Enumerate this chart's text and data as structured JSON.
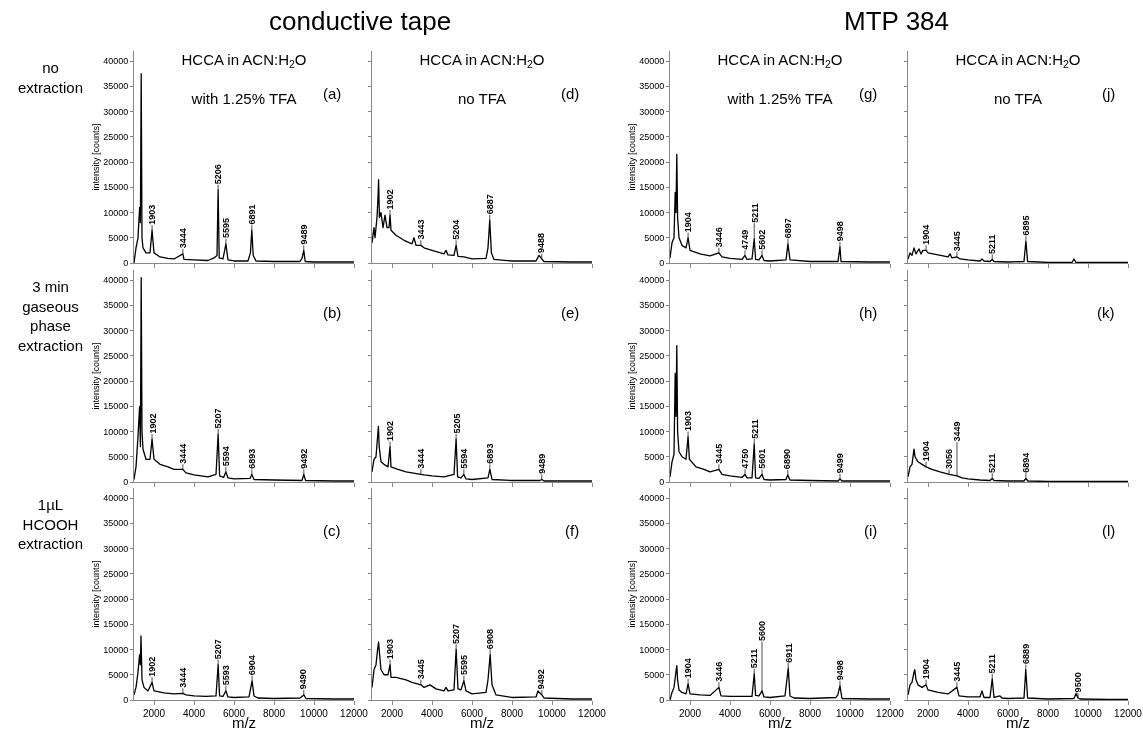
{
  "chart_data": [
    {
      "type": "line",
      "title": "HCCA in ACN:H$_{2}$O",
      "subtitle": "with 1.25% TFA",
      "ylabel": "intensity [counts]",
      "xlim": [
        1000,
        12000
      ],
      "ylim": [
        0,
        42000
      ],
      "xticks": [
        2000,
        4000,
        6000,
        8000,
        10000,
        12000
      ],
      "yticks": [
        0,
        5000,
        10000,
        15000,
        20000,
        25000,
        30000,
        35000,
        40000
      ],
      "tick_labels": "y",
      "x": [
        1000,
        1100,
        1200,
        1280,
        1320,
        1360,
        1400,
        1450,
        1600,
        1800,
        1903,
        2000,
        2300,
        2700,
        3000,
        3444,
        3500,
        4000,
        4700,
        5000,
        5150,
        5206,
        5260,
        5450,
        5595,
        5700,
        6000,
        6700,
        6820,
        6891,
        6960,
        7100,
        8000,
        9300,
        9400,
        9489,
        9560,
        10000,
        11000,
        12000
      ],
      "series": [
        {
          "color": "#000000",
          "values": [
            0,
            3000,
            5000,
            11000,
            8000,
            37500,
            5000,
            3000,
            2000,
            2000,
            6500,
            2000,
            1200,
            900,
            800,
            1800,
            700,
            600,
            500,
            1000,
            1500,
            14500,
            1000,
            800,
            3800,
            600,
            400,
            400,
            2000,
            6500,
            1500,
            400,
            300,
            300,
            900,
            2500,
            300,
            200,
            200,
            200
          ]
        }
      ],
      "annotations": [
        "conductive tape",
        "no\nextraction",
        "(a)",
        {
          "text": "1903",
          "x": 1903,
          "y": 6500
        },
        {
          "text": "3444",
          "x": 3444,
          "y": 1800
        },
        {
          "text": "5206",
          "x": 5206,
          "y": 14500
        },
        {
          "text": "5595",
          "x": 5595,
          "y": 3800
        },
        {
          "text": "6891",
          "x": 6891,
          "y": 6500
        },
        {
          "text": "9489",
          "x": 9489,
          "y": 2500
        }
      ]
    },
    {
      "type": "line",
      "title": "HCCA in ACN:H$_{2}$O",
      "subtitle": "no TFA",
      "xlim": [
        1000,
        12000
      ],
      "ylim": [
        0,
        42000
      ],
      "xticks": [
        2000,
        4000,
        6000,
        8000,
        10000,
        12000
      ],
      "yticks": [
        0,
        5000,
        10000,
        15000,
        20000,
        25000,
        30000,
        35000,
        40000
      ],
      "tick_labels": false,
      "x": [
        1000,
        1100,
        1150,
        1250,
        1300,
        1330,
        1370,
        1450,
        1550,
        1650,
        1750,
        1850,
        1902,
        1950,
        2200,
        2600,
        3000,
        3100,
        3200,
        3443,
        3600,
        4000,
        4600,
        4700,
        4800,
        5100,
        5204,
        5300,
        5600,
        6000,
        6700,
        6800,
        6887,
        6970,
        7100,
        8000,
        9200,
        9350,
        9488,
        9600,
        11000,
        12000
      ],
      "series": [
        {
          "color": "#000000",
          "values": [
            4000,
            7000,
            5000,
            9000,
            13000,
            16500,
            9000,
            10000,
            7000,
            9500,
            7000,
            7000,
            9500,
            6500,
            5500,
            4500,
            3800,
            5000,
            3500,
            3500,
            3000,
            2500,
            1800,
            2500,
            1600,
            1500,
            3500,
            1300,
            1200,
            800,
            900,
            3000,
            8500,
            2000,
            700,
            400,
            400,
            1500,
            800,
            300,
            200,
            200
          ]
        }
      ],
      "annotations": [
        "(d)",
        {
          "text": "1902",
          "x": 1902,
          "y": 9500
        },
        {
          "text": "3443",
          "x": 3443,
          "y": 3500
        },
        {
          "text": "5204",
          "x": 5204,
          "y": 3500
        },
        {
          "text": "6887",
          "x": 6887,
          "y": 8500
        },
        {
          "text": "9488",
          "x": 9488,
          "y": 800
        }
      ]
    },
    {
      "type": "line",
      "title": "HCCA in ACN:H$_{2}$O",
      "subtitle": "with 1.25% TFA",
      "ylabel": "intensity [counts]",
      "xlim": [
        1000,
        12000
      ],
      "ylim": [
        0,
        42000
      ],
      "xticks": [
        2000,
        4000,
        6000,
        8000,
        10000,
        12000
      ],
      "yticks": [
        0,
        5000,
        10000,
        15000,
        20000,
        25000,
        30000,
        35000,
        40000
      ],
      "tick_labels": "y",
      "x": [
        1000,
        1100,
        1200,
        1260,
        1300,
        1340,
        1380,
        1450,
        1600,
        1800,
        1904,
        2000,
        2500,
        3000,
        3446,
        3600,
        4000,
        4600,
        4749,
        4850,
        5100,
        5211,
        5280,
        5450,
        5602,
        5700,
        6000,
        6800,
        6897,
        7000,
        8000,
        9400,
        9498,
        9550,
        11000,
        12000
      ],
      "series": [
        {
          "color": "#000000",
          "values": [
            1000,
            4000,
            5000,
            14000,
            10000,
            21500,
            9000,
            5000,
            3500,
            3000,
            5000,
            2500,
            1800,
            1400,
            2000,
            1200,
            900,
            700,
            1500,
            700,
            800,
            4800,
            700,
            600,
            1500,
            500,
            400,
            600,
            3800,
            600,
            300,
            300,
            3200,
            300,
            200,
            200
          ]
        }
      ],
      "annotations": [
        "MTP 384",
        "(g)",
        {
          "text": "1904",
          "x": 1904,
          "y": 5000
        },
        {
          "text": "3446",
          "x": 3446,
          "y": 2000
        },
        {
          "text": "4749",
          "x": 4749,
          "y": 1500
        },
        {
          "text": "5211",
          "x": 5211,
          "y": 4800
        },
        {
          "text": "5602",
          "x": 5602,
          "y": 1500
        },
        {
          "text": "6897",
          "x": 6897,
          "y": 3800
        },
        {
          "text": "9498",
          "x": 9498,
          "y": 3200
        }
      ]
    },
    {
      "type": "line",
      "title": "HCCA in ACN:H$_{2}$O",
      "subtitle": "no TFA",
      "xlim": [
        1000,
        12000
      ],
      "ylim": [
        0,
        42000
      ],
      "xticks": [
        2000,
        4000,
        6000,
        8000,
        10000,
        12000
      ],
      "yticks": [
        0,
        5000,
        10000,
        15000,
        20000,
        25000,
        30000,
        35000,
        40000
      ],
      "tick_labels": false,
      "x": [
        1000,
        1100,
        1200,
        1300,
        1400,
        1550,
        1650,
        1750,
        1904,
        2000,
        2500,
        3000,
        3100,
        3200,
        3445,
        3600,
        4000,
        4600,
        4700,
        4800,
        5100,
        5211,
        5300,
        6000,
        6800,
        6895,
        6980,
        8000,
        9200,
        9300,
        9400,
        11000,
        12000
      ],
      "series": [
        {
          "color": "#000000",
          "values": [
            800,
            2000,
            1500,
            3000,
            1800,
            2800,
            1800,
            2500,
            2500,
            2000,
            1600,
            1200,
            1800,
            1000,
            1200,
            800,
            600,
            400,
            800,
            400,
            300,
            700,
            300,
            200,
            300,
            4300,
            300,
            100,
            100,
            800,
            100,
            100,
            100
          ]
        }
      ],
      "annotations": [
        "(j)",
        {
          "text": "1904",
          "x": 1904,
          "y": 2500
        },
        {
          "text": "3445",
          "x": 3445,
          "y": 1200
        },
        {
          "text": "5211",
          "x": 5211,
          "y": 700
        },
        {
          "text": "6895",
          "x": 6895,
          "y": 4300
        }
      ]
    },
    {
      "type": "line",
      "xlim": [
        1000,
        12000
      ],
      "ylim": [
        0,
        42000
      ],
      "ylabel": "intensity [counts]",
      "xticks": [
        2000,
        4000,
        6000,
        8000,
        10000,
        12000
      ],
      "yticks": [
        0,
        5000,
        10000,
        15000,
        20000,
        25000,
        30000,
        35000,
        40000
      ],
      "tick_labels": "y",
      "x": [
        1000,
        1100,
        1200,
        1280,
        1320,
        1360,
        1400,
        1450,
        1600,
        1800,
        1902,
        2000,
        2300,
        2700,
        3000,
        3444,
        3600,
        4000,
        4700,
        5100,
        5207,
        5280,
        5480,
        5594,
        5700,
        6000,
        6800,
        6893,
        7000,
        8000,
        9400,
        9492,
        9580,
        11000,
        12000
      ],
      "series": [
        {
          "color": "#000000",
          "values": [
            500,
            3000,
            9000,
            15000,
            7000,
            40500,
            10000,
            6500,
            4500,
            4500,
            8500,
            4500,
            3500,
            3000,
            2500,
            2500,
            1800,
            1400,
            1000,
            1500,
            9500,
            1200,
            900,
            2000,
            800,
            600,
            700,
            1500,
            500,
            400,
            300,
            1500,
            300,
            200,
            200
          ]
        }
      ],
      "annotations": [
        "3 min\ngaseous\nphase\nextraction",
        "(b)",
        {
          "text": "1902",
          "x": 1902,
          "y": 8500
        },
        {
          "text": "3444",
          "x": 3444,
          "y": 2500
        },
        {
          "text": "5207",
          "x": 5207,
          "y": 9500
        },
        {
          "text": "5594",
          "x": 5594,
          "y": 2000
        },
        {
          "text": "6893",
          "x": 6893,
          "y": 1500
        },
        {
          "text": "9492",
          "x": 9492,
          "y": 1500
        }
      ]
    },
    {
      "type": "line",
      "xlim": [
        1000,
        12000
      ],
      "ylim": [
        0,
        42000
      ],
      "xticks": [
        2000,
        4000,
        6000,
        8000,
        10000,
        12000
      ],
      "yticks": [
        0,
        5000,
        10000,
        15000,
        20000,
        25000,
        30000,
        35000,
        40000
      ],
      "tick_labels": false,
      "x": [
        1000,
        1100,
        1200,
        1280,
        1320,
        1360,
        1450,
        1600,
        1800,
        1902,
        1950,
        2300,
        2700,
        3000,
        3444,
        3600,
        4000,
        4600,
        5100,
        5205,
        5280,
        5450,
        5594,
        5700,
        6000,
        6800,
        6893,
        7000,
        8000,
        9400,
        9489,
        9600,
        11000,
        12000
      ],
      "series": [
        {
          "color": "#000000",
          "values": [
            2000,
            4500,
            5000,
            9000,
            11000,
            7000,
            4000,
            3500,
            3000,
            7000,
            3000,
            2500,
            2000,
            1800,
            1500,
            1400,
            1200,
            1000,
            1500,
            8500,
            1000,
            800,
            1500,
            600,
            500,
            800,
            2500,
            500,
            300,
            300,
            500,
            200,
            200,
            200
          ]
        }
      ],
      "annotations": [
        "(e)",
        {
          "text": "1902",
          "x": 1902,
          "y": 7000
        },
        {
          "text": "3444",
          "x": 3444,
          "y": 1500
        },
        {
          "text": "5205",
          "x": 5205,
          "y": 8500
        },
        {
          "text": "5594",
          "x": 5594,
          "y": 1500
        },
        {
          "text": "6893",
          "x": 6893,
          "y": 2500
        },
        {
          "text": "9489",
          "x": 9489,
          "y": 500
        }
      ]
    },
    {
      "type": "line",
      "xlim": [
        1000,
        12000
      ],
      "ylim": [
        0,
        42000
      ],
      "ylabel": "intensity [counts]",
      "xticks": [
        2000,
        4000,
        6000,
        8000,
        10000,
        12000
      ],
      "yticks": [
        0,
        5000,
        10000,
        15000,
        20000,
        25000,
        30000,
        35000,
        40000
      ],
      "tick_labels": "y",
      "x": [
        1000,
        1100,
        1200,
        1260,
        1300,
        1340,
        1380,
        1450,
        1600,
        1800,
        1903,
        1970,
        2300,
        2700,
        3000,
        3445,
        3600,
        4000,
        4600,
        4750,
        4850,
        5100,
        5211,
        5280,
        5450,
        5601,
        5700,
        6000,
        6800,
        6890,
        7000,
        8000,
        9400,
        9499,
        9600,
        11000,
        12000
      ],
      "series": [
        {
          "color": "#000000",
          "values": [
            1000,
            4000,
            5500,
            21500,
            13000,
            27000,
            10000,
            6000,
            5000,
            4500,
            9000,
            4500,
            3000,
            2500,
            2000,
            2500,
            1500,
            1200,
            900,
            1500,
            800,
            800,
            7500,
            800,
            700,
            1500,
            500,
            400,
            500,
            1400,
            400,
            300,
            200,
            600,
            200,
            200,
            200
          ]
        }
      ],
      "annotations": [
        "(h)",
        {
          "text": "1903",
          "x": 1903,
          "y": 9000
        },
        {
          "text": "3445",
          "x": 3445,
          "y": 2500
        },
        {
          "text": "4750",
          "x": 4750,
          "y": 1500
        },
        {
          "text": "5211",
          "x": 5211,
          "y": 7500
        },
        {
          "text": "5601",
          "x": 5601,
          "y": 1500
        },
        {
          "text": "6890",
          "x": 6890,
          "y": 1400
        },
        {
          "text": "9499",
          "x": 9499,
          "y": 600
        }
      ]
    },
    {
      "type": "line",
      "xlim": [
        1000,
        12000
      ],
      "ylim": [
        0,
        42000
      ],
      "xticks": [
        2000,
        4000,
        6000,
        8000,
        10000,
        12000
      ],
      "yticks": [
        0,
        5000,
        10000,
        15000,
        20000,
        25000,
        30000,
        35000,
        40000
      ],
      "tick_labels": false,
      "x": [
        1000,
        1100,
        1200,
        1300,
        1350,
        1500,
        1700,
        1904,
        2200,
        2600,
        3056,
        3449,
        3700,
        4000,
        4600,
        5100,
        5211,
        5300,
        6000,
        6800,
        6894,
        7000,
        8000,
        12000
      ],
      "series": [
        {
          "color": "#000000",
          "values": [
            1000,
            3000,
            3500,
            6500,
            5000,
            4000,
            3500,
            3000,
            2500,
            2000,
            1500,
            1200,
            800,
            600,
            400,
            300,
            700,
            300,
            200,
            200,
            700,
            200,
            100,
            100
          ]
        }
      ],
      "annotations": [
        "(k)",
        {
          "text": "1904",
          "x": 1904,
          "y": 3000
        },
        {
          "text": "3056",
          "x": 3056,
          "y": 1500
        },
        {
          "text": "3449",
          "x": 3449,
          "y": 1200
        },
        {
          "text": "5211",
          "x": 5211,
          "y": 700
        },
        {
          "text": "6894",
          "x": 6894,
          "y": 700
        }
      ]
    },
    {
      "type": "line",
      "xlabel": "m/z",
      "ylabel": "intensity [counts]",
      "xlim": [
        1000,
        12000
      ],
      "ylim": [
        0,
        42000
      ],
      "xticks": [
        2000,
        4000,
        6000,
        8000,
        10000,
        12000
      ],
      "yticks": [
        0,
        5000,
        10000,
        15000,
        20000,
        25000,
        30000,
        35000,
        40000
      ],
      "x": [
        1000,
        1100,
        1200,
        1280,
        1320,
        1350,
        1400,
        1500,
        1700,
        1902,
        2000,
        2500,
        3000,
        3444,
        3600,
        4000,
        4600,
        5100,
        5207,
        5280,
        5450,
        5593,
        5700,
        6000,
        6750,
        6904,
        7000,
        7200,
        8000,
        9300,
        9490,
        9600,
        11000,
        12000
      ],
      "series": [
        {
          "color": "#000000",
          "values": [
            1000,
            2500,
            5500,
            9000,
            7000,
            12700,
            4000,
            2500,
            1800,
            3500,
            1800,
            1400,
            1200,
            1300,
            1000,
            800,
            700,
            800,
            7000,
            800,
            700,
            1800,
            600,
            500,
            600,
            3800,
            800,
            400,
            300,
            400,
            1000,
            300,
            200,
            200
          ]
        }
      ],
      "annotations": [
        "1µL\nHCOOH\nextraction",
        "(c)",
        {
          "text": "1902",
          "x": 1902,
          "y": 3500
        },
        {
          "text": "3444",
          "x": 3444,
          "y": 1300
        },
        {
          "text": "5207",
          "x": 5207,
          "y": 7000
        },
        {
          "text": "5593",
          "x": 5593,
          "y": 1800
        },
        {
          "text": "6904",
          "x": 6904,
          "y": 3800
        },
        {
          "text": "9490",
          "x": 9490,
          "y": 1000
        }
      ]
    },
    {
      "type": "line",
      "xlabel": "m/z",
      "xlim": [
        1000,
        12000
      ],
      "ylim": [
        0,
        42000
      ],
      "xticks": [
        2000,
        4000,
        6000,
        8000,
        10000,
        12000
      ],
      "yticks": [
        0,
        5000,
        10000,
        15000,
        20000,
        25000,
        30000,
        35000,
        40000
      ],
      "tick_labels": "x",
      "x": [
        1000,
        1100,
        1200,
        1280,
        1330,
        1380,
        1450,
        1600,
        1800,
        1903,
        1950,
        2200,
        2700,
        3000,
        3445,
        3600,
        3900,
        4200,
        4600,
        4700,
        4800,
        5100,
        5207,
        5300,
        5450,
        5595,
        5700,
        6000,
        6700,
        6800,
        6908,
        7000,
        7200,
        8000,
        9200,
        9300,
        9492,
        9600,
        11000,
        12000
      ],
      "series": [
        {
          "color": "#000000",
          "values": [
            2500,
            6000,
            7000,
            10000,
            11500,
            9000,
            6000,
            5000,
            5000,
            7000,
            4500,
            4500,
            4000,
            3500,
            3000,
            2500,
            3000,
            2200,
            1800,
            2500,
            1800,
            2000,
            10000,
            2200,
            2000,
            3800,
            1800,
            1200,
            1500,
            4000,
            9000,
            3000,
            1000,
            500,
            600,
            1800,
            1000,
            400,
            200,
            200
          ]
        }
      ],
      "annotations": [
        "(f)",
        {
          "text": "1903",
          "x": 1903,
          "y": 7000
        },
        {
          "text": "3445",
          "x": 3445,
          "y": 3000
        },
        {
          "text": "5207",
          "x": 5207,
          "y": 10000
        },
        {
          "text": "5595",
          "x": 5595,
          "y": 3800
        },
        {
          "text": "6908",
          "x": 6908,
          "y": 9000
        },
        {
          "text": "9492",
          "x": 9492,
          "y": 1000
        }
      ]
    },
    {
      "type": "line",
      "xlabel": "m/z",
      "ylabel": "intensity [counts]",
      "xlim": [
        1000,
        12000
      ],
      "ylim": [
        0,
        42000
      ],
      "xticks": [
        2000,
        4000,
        6000,
        8000,
        10000,
        12000
      ],
      "yticks": [
        0,
        5000,
        10000,
        15000,
        20000,
        25000,
        30000,
        35000,
        40000
      ],
      "x": [
        1000,
        1100,
        1200,
        1280,
        1340,
        1380,
        1450,
        1600,
        1800,
        1904,
        2000,
        2500,
        3000,
        3446,
        3550,
        4000,
        4600,
        5100,
        5211,
        5280,
        5450,
        5600,
        5700,
        6000,
        6750,
        6911,
        7000,
        7200,
        8000,
        9300,
        9390,
        9498,
        9600,
        11000,
        12000
      ],
      "series": [
        {
          "color": "#000000",
          "values": [
            0,
            1500,
            2500,
            5000,
            6800,
            4000,
            2000,
            1500,
            1200,
            3200,
            1200,
            1000,
            900,
            2500,
            800,
            700,
            700,
            700,
            5200,
            900,
            800,
            1800,
            600,
            500,
            800,
            6300,
            800,
            400,
            300,
            500,
            1000,
            2800,
            300,
            200,
            200
          ]
        }
      ],
      "annotations": [
        "(i)",
        {
          "text": "1904",
          "x": 1904,
          "y": 3200
        },
        {
          "text": "3446",
          "x": 3446,
          "y": 2500
        },
        {
          "text": "5211",
          "x": 5211,
          "y": 5200
        },
        {
          "text": "5600",
          "x": 5600,
          "y": 1800
        },
        {
          "text": "6911",
          "x": 6911,
          "y": 6300
        },
        {
          "text": "9498",
          "x": 9498,
          "y": 2800
        }
      ]
    },
    {
      "type": "line",
      "xlabel": "m/z",
      "xlim": [
        1000,
        12000
      ],
      "ylim": [
        0,
        42000
      ],
      "xticks": [
        2000,
        4000,
        6000,
        8000,
        10000,
        12000
      ],
      "yticks": [
        0,
        5000,
        10000,
        15000,
        20000,
        25000,
        30000,
        35000,
        40000
      ],
      "tick_labels": "x",
      "x": [
        1000,
        1100,
        1200,
        1300,
        1340,
        1400,
        1500,
        1700,
        1904,
        2000,
        2500,
        3000,
        3445,
        3550,
        4000,
        4600,
        4700,
        4800,
        5100,
        5211,
        5300,
        5600,
        5700,
        6000,
        6800,
        6889,
        6980,
        8000,
        9300,
        9400,
        9500,
        9600,
        11000,
        12000
      ],
      "series": [
        {
          "color": "#000000",
          "values": [
            1000,
            3000,
            3500,
            5500,
            6000,
            4000,
            3000,
            2500,
            3000,
            2000,
            1500,
            1200,
            2500,
            800,
            600,
            600,
            1800,
            500,
            500,
            4200,
            500,
            800,
            400,
            300,
            400,
            6000,
            400,
            200,
            300,
            1300,
            400,
            200,
            100,
            100
          ]
        }
      ],
      "annotations": [
        "(l)",
        {
          "text": "1904",
          "x": 1904,
          "y": 3000
        },
        {
          "text": "3445",
          "x": 3445,
          "y": 2500
        },
        {
          "text": "5211",
          "x": 5211,
          "y": 4200
        },
        {
          "text": "6889",
          "x": 6889,
          "y": 6000
        },
        {
          "text": "9500",
          "x": 9500,
          "y": 400
        }
      ]
    }
  ]
}
